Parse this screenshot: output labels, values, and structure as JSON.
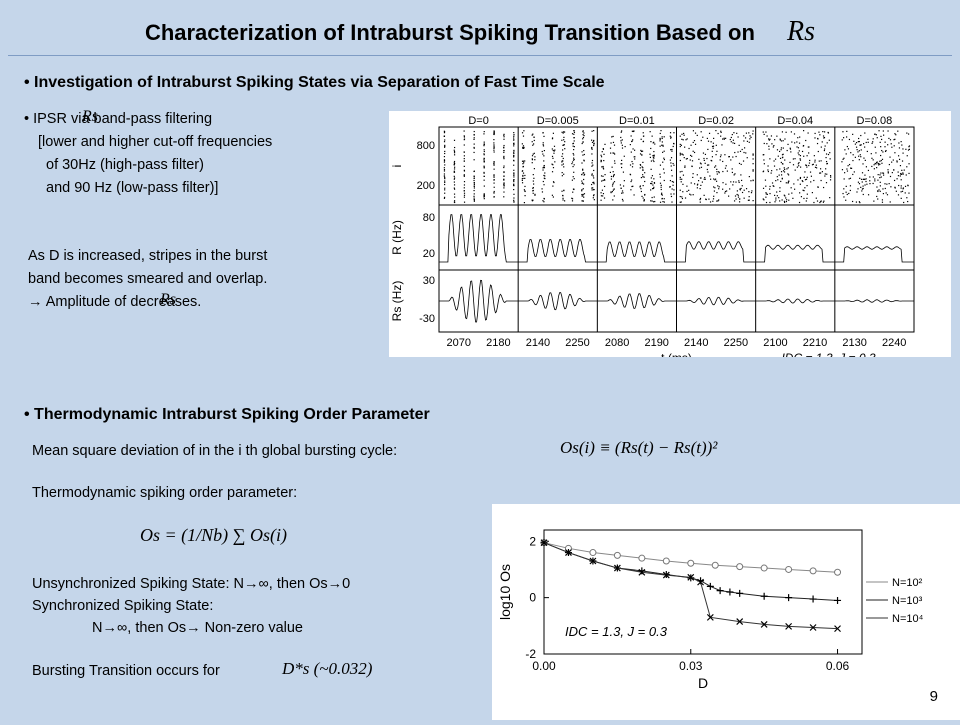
{
  "slide": {
    "title": "Characterization of Intraburst Spiking Transition Based on",
    "title_symbol": "Rs",
    "page_number": "9"
  },
  "section1": {
    "heading": "• Investigation of Intraburst Spiking States via Separation of Fast Time Scale",
    "bullet_lines": [
      "• IPSR        via band-pass filtering",
      "[lower and higher cut-off frequencies",
      "of 30Hz (high-pass filter)",
      "and 90 Hz (low-pass filter)]"
    ],
    "bullet_symbol": "Rs",
    "note_lines": [
      "As D is increased, stripes in the burst",
      "band becomes smeared and overlap.",
      "→ Amplitude of       decreases."
    ],
    "note_symbol": "Rs"
  },
  "section2": {
    "heading": "• Thermodynamic Intraburst Spiking Order Parameter",
    "msd_text": "Mean square deviation of       in the i th global bursting cycle:",
    "msd_formula": "Os(i) ≡ (Rs(t) − Rs(t))²",
    "order_text": "Thermodynamic spiking order parameter:",
    "order_formula": "Os = (1/Nb) ∑ Os(i)",
    "unsync_text": "Unsynchronized Spiking State: N→∞, then Os→0",
    "sync_text": "Synchronized Spiking State:",
    "sync_cond": "N→∞, then Os→ Non-zero value",
    "burst_text": "Bursting Transition occurs for",
    "burst_value": "D*s (~0.032)"
  },
  "raster_figure": {
    "columns": [
      {
        "label": "D=0",
        "ticks": [
          "2070",
          "2180"
        ]
      },
      {
        "label": "D=0.005",
        "ticks": [
          "2140",
          "2250"
        ]
      },
      {
        "label": "D=0.01",
        "ticks": [
          "2080",
          "2190"
        ]
      },
      {
        "label": "D=0.02",
        "ticks": [
          "2140",
          "2250"
        ]
      },
      {
        "label": "D=0.04",
        "ticks": [
          "2100",
          "2210"
        ]
      },
      {
        "label": "D=0.08",
        "ticks": [
          "2130",
          "2240"
        ]
      }
    ],
    "row_labels": {
      "raster": "i",
      "rate": "R (Hz)",
      "filtered": "Rs (Hz)"
    },
    "raster_ticks": [
      "800",
      "200"
    ],
    "rate_ticks": [
      "80",
      "20"
    ],
    "filtered_ticks": [
      "30",
      "-30"
    ],
    "xlabel": "t (ms)",
    "params": "IDC = 1.3, J = 0.3"
  },
  "chart_data": {
    "type": "line",
    "xlabel": "D",
    "ylabel": "log10 Os",
    "xlim": [
      0,
      0.065
    ],
    "ylim": [
      -2,
      2.4
    ],
    "xticks": [
      "0.00",
      "0.03",
      "0.06"
    ],
    "yticks": [
      "2",
      "0",
      "-2"
    ],
    "legend_position": "right",
    "annotation": "IDC = 1.3, J = 0.3",
    "series": [
      {
        "name": "N=10²",
        "marker": "circle",
        "x": [
          0.0,
          0.005,
          0.01,
          0.015,
          0.02,
          0.025,
          0.03,
          0.035,
          0.04,
          0.045,
          0.05,
          0.055,
          0.06
        ],
        "y": [
          1.95,
          1.75,
          1.6,
          1.5,
          1.4,
          1.3,
          1.22,
          1.15,
          1.1,
          1.05,
          1.0,
          0.95,
          0.9
        ]
      },
      {
        "name": "N=10³",
        "marker": "plus",
        "x": [
          0.0,
          0.005,
          0.01,
          0.015,
          0.02,
          0.025,
          0.03,
          0.032,
          0.034,
          0.036,
          0.038,
          0.04,
          0.045,
          0.05,
          0.055,
          0.06
        ],
        "y": [
          1.95,
          1.6,
          1.3,
          1.05,
          0.95,
          0.82,
          0.7,
          0.6,
          0.4,
          0.25,
          0.2,
          0.15,
          0.05,
          0.0,
          -0.05,
          -0.1
        ]
      },
      {
        "name": "N=10⁴",
        "marker": "x",
        "x": [
          0.0,
          0.005,
          0.01,
          0.015,
          0.02,
          0.025,
          0.03,
          0.032,
          0.034,
          0.04,
          0.045,
          0.05,
          0.055,
          0.06
        ],
        "y": [
          1.95,
          1.6,
          1.3,
          1.05,
          0.9,
          0.8,
          0.72,
          0.55,
          -0.7,
          -0.85,
          -0.95,
          -1.02,
          -1.06,
          -1.1
        ]
      }
    ]
  }
}
